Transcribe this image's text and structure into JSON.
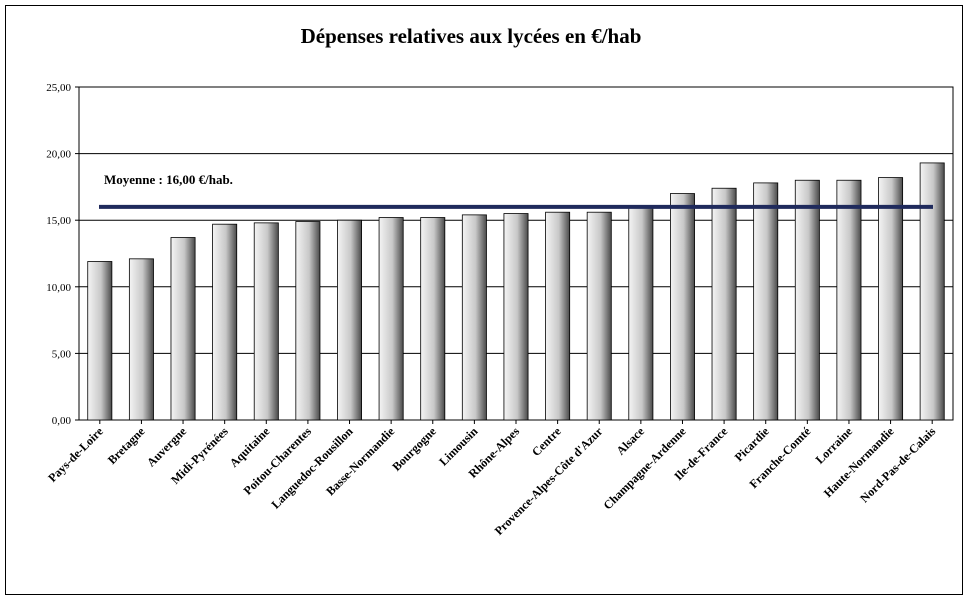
{
  "chart_data": {
    "type": "bar",
    "title": "Dépenses relatives aux lycées en €/hab",
    "xlabel": "",
    "ylabel": "",
    "ylim": [
      0,
      25
    ],
    "yticks": [
      0,
      5,
      10,
      15,
      20,
      25
    ],
    "ytick_labels": [
      "0,00",
      "5,00",
      "10,00",
      "15,00",
      "20,00",
      "25,00"
    ],
    "grid": "horizontal",
    "categories": [
      "Pays-de-Loire",
      "Bretagne",
      "Auvergne",
      "Midi-Pyrénées",
      "Aquitaine",
      "Poitou-Charentes",
      "Languedoc-Rousillon",
      "Basse-Normandie",
      "Bourgogne",
      "Limousin",
      "Rhône-Alpes",
      "Centre",
      "Provence-Alpes-Côte d'Azur",
      "Alsace",
      "Champagne-Ardenne",
      "Ile-de-France",
      "Picardie",
      "Franche-Comté",
      "Lorraine",
      "Haute-Normandie",
      "Nord-Pas-de-Calais"
    ],
    "values": [
      11.9,
      12.1,
      13.7,
      14.7,
      14.8,
      14.9,
      15.0,
      15.2,
      15.2,
      15.4,
      15.5,
      15.6,
      15.6,
      16.1,
      17.0,
      17.4,
      17.8,
      18.0,
      18.0,
      18.2,
      19.3
    ],
    "reference_line": {
      "value": 16.0,
      "label": "Moyenne :    16,00 €/hab.",
      "color": "#1f2a5c"
    },
    "bar_color": "#d9d9d9"
  }
}
